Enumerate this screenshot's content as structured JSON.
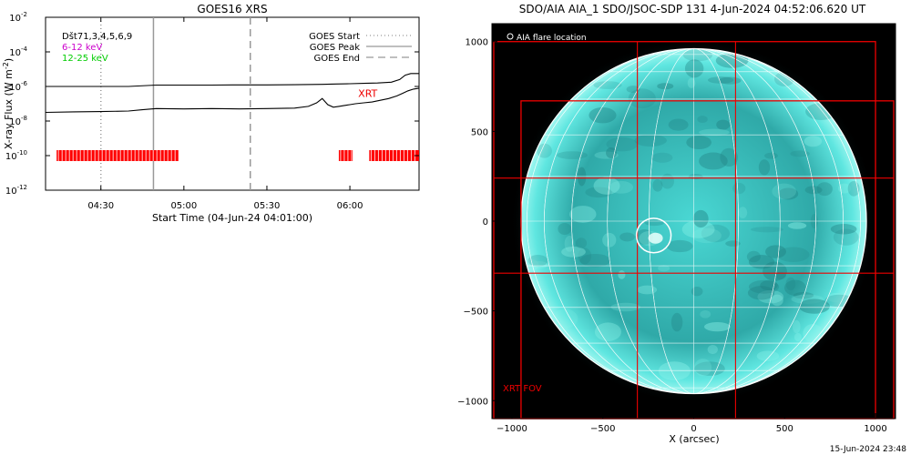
{
  "chart_data": [
    {
      "type": "line",
      "title": "GOES16 XRS",
      "xlabel": "Start Time (04-Jun-24 04:01:00)",
      "ylabel": "X-ray Flux (W m",
      "ylabel_sup": "-2",
      "ylabel_close": ")",
      "x_units": "minutes after 04:00 UT",
      "xlim": [
        10,
        145
      ],
      "ylim_log10": [
        -12,
        -2
      ],
      "y_scale": "log",
      "yticks": [
        {
          "exp": -2,
          "label": "10",
          "sup": "-2"
        },
        {
          "exp": -4,
          "label": "10",
          "sup": "-4"
        },
        {
          "exp": -6,
          "label": "10",
          "sup": "-6"
        },
        {
          "exp": -8,
          "label": "10",
          "sup": "-8"
        },
        {
          "exp": -10,
          "label": "10",
          "sup": "-10"
        },
        {
          "exp": -12,
          "label": "10",
          "sup": "-12"
        }
      ],
      "xticks": [
        {
          "t": 30,
          "label": "04:30"
        },
        {
          "t": 60,
          "label": "05:00"
        },
        {
          "t": 90,
          "label": "05:30"
        },
        {
          "t": 120,
          "label": "06:00"
        }
      ],
      "legend_left": [
        {
          "label": "Dšt71,3,4,5,6,9",
          "color": "#000000"
        },
        {
          "label": "6-12 keV",
          "color": "#cc00cc"
        },
        {
          "label": "12-25 keV",
          "color": "#00cc00"
        }
      ],
      "legend_right": [
        {
          "label": "GOES Start",
          "style": "dotted"
        },
        {
          "label": "GOES Peak",
          "style": "solid"
        },
        {
          "label": "GOES End",
          "style": "dashed"
        }
      ],
      "event_lines": [
        {
          "name": "GOES Start",
          "t": 30,
          "style": "dotted"
        },
        {
          "name": "GOES Peak",
          "t": 49,
          "style": "solid"
        },
        {
          "name": "GOES End",
          "t": 84,
          "style": "dashed"
        }
      ],
      "annotation": {
        "label": "XRT",
        "t": 123,
        "log_flux": -6.6,
        "color": "#ee0000"
      },
      "series": [
        {
          "name": "long channel",
          "color": "#000000",
          "x": [
            10,
            40,
            50,
            60,
            70,
            80,
            90,
            100,
            110,
            115,
            120,
            125,
            130,
            135,
            138,
            140,
            142,
            145
          ],
          "log_flux": [
            -6.0,
            -6.0,
            -5.92,
            -5.92,
            -5.92,
            -5.91,
            -5.91,
            -5.9,
            -5.88,
            -5.86,
            -5.84,
            -5.82,
            -5.8,
            -5.75,
            -5.6,
            -5.35,
            -5.25,
            -5.25
          ]
        },
        {
          "name": "short channel",
          "color": "#000000",
          "x": [
            10,
            20,
            30,
            40,
            45,
            50,
            60,
            70,
            80,
            90,
            100,
            105,
            108,
            110,
            112,
            114,
            116,
            118,
            120,
            122,
            125,
            128,
            131,
            134,
            137,
            139,
            141,
            143,
            145
          ],
          "log_flux": [
            -7.5,
            -7.47,
            -7.45,
            -7.42,
            -7.35,
            -7.28,
            -7.3,
            -7.28,
            -7.3,
            -7.28,
            -7.25,
            -7.15,
            -6.95,
            -6.7,
            -7.05,
            -7.2,
            -7.15,
            -7.1,
            -7.05,
            -7.0,
            -6.95,
            -6.9,
            -6.8,
            -6.7,
            -6.55,
            -6.4,
            -6.25,
            -6.15,
            -6.1
          ]
        }
      ],
      "coverage": {
        "color": "#ff0000",
        "log_flux": -10,
        "intervals": [
          [
            14,
            58
          ],
          [
            116,
            121
          ],
          [
            127,
            145
          ]
        ]
      }
    },
    {
      "type": "image",
      "title": "SDO/AIA AIA_1 SDO/JSOC-SDP 131  4-Jun-2024 04:52:06.620 UT",
      "xlabel": "X (arcsec)",
      "xlim": [
        -1110,
        1110
      ],
      "ylim": [
        -1100,
        1100
      ],
      "xticks": [
        -1000,
        -500,
        0,
        500,
        1000
      ],
      "yticks": [
        1000,
        500,
        0,
        -500,
        -1000
      ],
      "xtick_labels": [
        "−1000",
        "−500",
        "0",
        "500",
        "1000"
      ],
      "ytick_labels": [
        "1000",
        "500",
        "0",
        "−500",
        "−1000"
      ],
      "solar_radius_arcsec": 950,
      "colors": {
        "sun": "#3fc6c4",
        "frame": "#000000",
        "fov": "#ee0000",
        "grid": "#ffffff"
      },
      "legend": {
        "label": "AIA flare location",
        "marker": "circle"
      },
      "flare": {
        "x": -220,
        "y": -80,
        "r": 95
      },
      "fov_label": "XRT FOV",
      "fov_boxes": [
        {
          "x0": -1100,
          "y0": -1100,
          "x1": 1000,
          "y1": 1000
        },
        {
          "x0": -950,
          "y0": -1100,
          "x1": 1100,
          "y1": 670
        }
      ],
      "fov_lines": {
        "x": [
          -310,
          230
        ],
        "y": [
          240,
          -290
        ]
      },
      "timestamp": "15-Jun-2024 23:48"
    }
  ]
}
